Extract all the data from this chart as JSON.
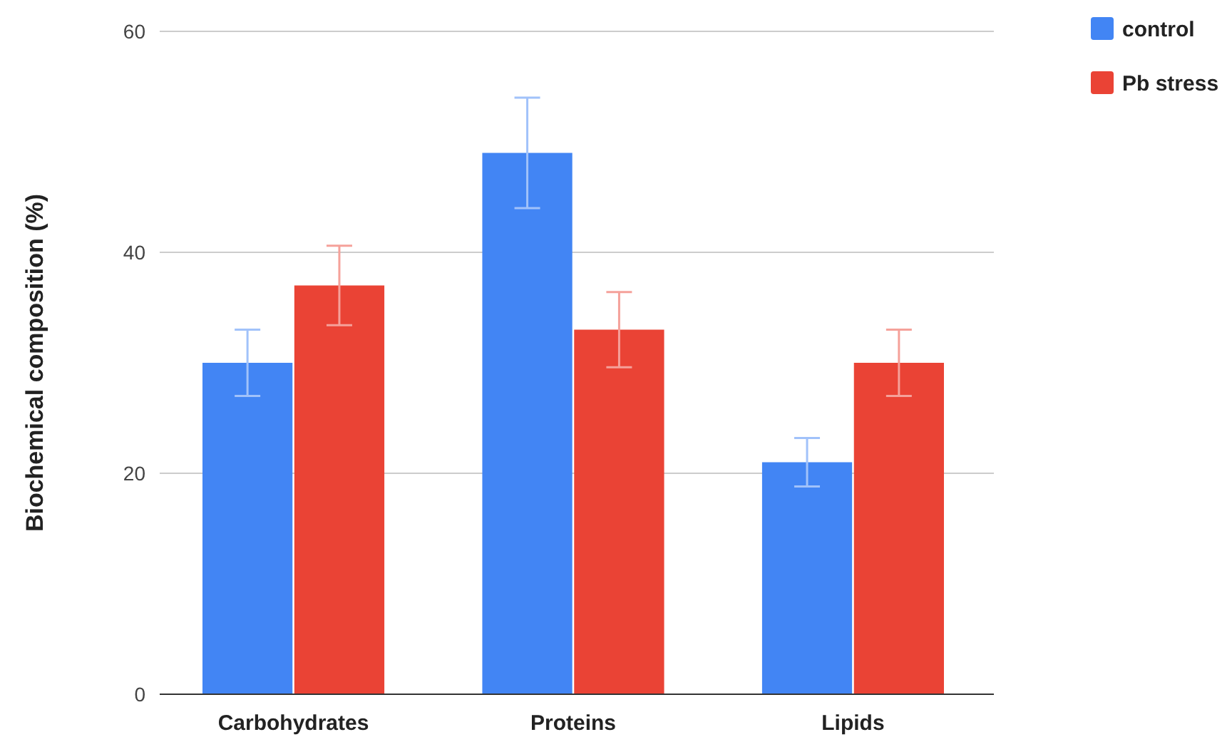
{
  "chart_data": {
    "type": "bar",
    "ylabel": "Biochemical composition (%)",
    "categories": [
      "Carbohydrates",
      "Proteins",
      "Lipids"
    ],
    "series": [
      {
        "name": "control",
        "color": "#4285f4",
        "values": [
          30,
          49,
          21
        ],
        "errors": [
          3,
          5,
          2.2
        ]
      },
      {
        "name": "Pb stress",
        "color": "#ea4335",
        "values": [
          37,
          33,
          30
        ],
        "errors": [
          3.6,
          3.4,
          3
        ]
      }
    ],
    "ylim": [
      0,
      60
    ],
    "yticks": [
      0,
      20,
      40,
      60
    ],
    "grid": "y",
    "legend": "top right"
  }
}
